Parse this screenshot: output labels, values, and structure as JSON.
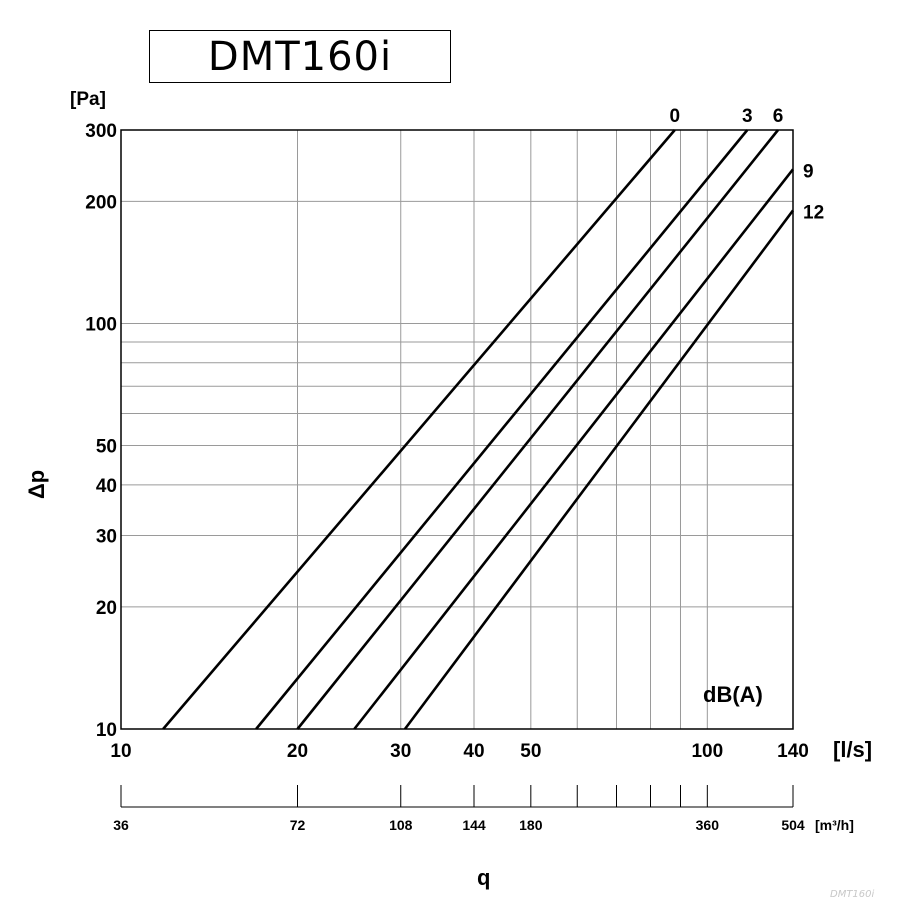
{
  "chart_data": {
    "type": "line",
    "title": "DMT160i",
    "xlabel": "q",
    "ylabel": "Δp",
    "x_unit": "[l/s]",
    "y_unit": "[Pa]",
    "x_scale": "log",
    "y_scale": "log",
    "xlim": [
      10,
      140
    ],
    "ylim": [
      10,
      300
    ],
    "x_ticks": [
      10,
      20,
      30,
      40,
      50,
      100,
      140
    ],
    "x_grid": [
      10,
      20,
      30,
      40,
      50,
      60,
      70,
      80,
      90,
      100,
      140
    ],
    "y_ticks": [
      10,
      20,
      30,
      40,
      50,
      100,
      200,
      300
    ],
    "y_grid": [
      10,
      20,
      30,
      40,
      50,
      60,
      70,
      80,
      90,
      100,
      200,
      300
    ],
    "secondary_x_unit": "[m³/h]",
    "secondary_x_ticks": [
      36,
      72,
      108,
      144,
      180,
      360,
      504
    ],
    "secondary_x_minor": [
      216,
      252,
      288,
      324
    ],
    "annotation": "dB(A)",
    "watermark": "DMT160i",
    "grid": true,
    "series": [
      {
        "name": "0",
        "points": [
          [
            11.8,
            10
          ],
          [
            88,
            300
          ]
        ]
      },
      {
        "name": "3",
        "points": [
          [
            17,
            10
          ],
          [
            117,
            300
          ]
        ]
      },
      {
        "name": "6",
        "points": [
          [
            20,
            10
          ],
          [
            132,
            300
          ]
        ]
      },
      {
        "name": "9",
        "points": [
          [
            25,
            10
          ],
          [
            140,
            240
          ]
        ]
      },
      {
        "name": "12",
        "points": [
          [
            30.5,
            10
          ],
          [
            140,
            190
          ]
        ]
      }
    ]
  }
}
